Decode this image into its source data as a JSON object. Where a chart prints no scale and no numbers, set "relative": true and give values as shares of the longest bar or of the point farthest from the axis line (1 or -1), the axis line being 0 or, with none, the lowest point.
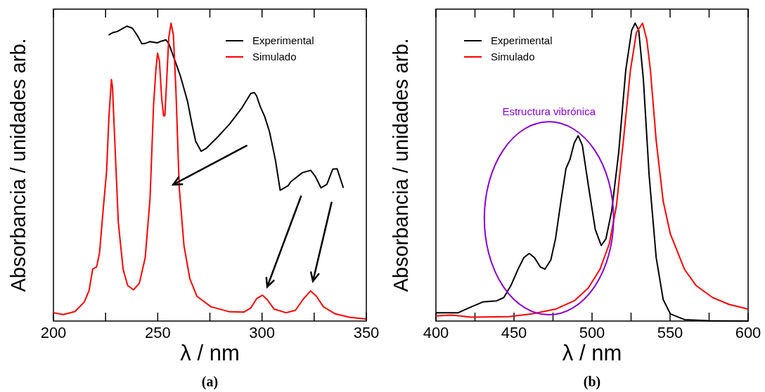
{
  "chart_data": [
    {
      "type": "line",
      "title": "(a)",
      "xlabel": "λ / nm",
      "ylabel": "Absorbancia / unidades arb.",
      "relative": true,
      "legend": "top right",
      "xlim": [
        200,
        350
      ],
      "xticks": [
        200,
        {
          "value": 225,
          "label": null
        },
        250,
        {
          "value": 275,
          "label": null
        },
        300,
        {
          "value": 325,
          "label": null
        },
        350
      ],
      "series": [
        {
          "name": "Experimental",
          "color": "#000000",
          "x": [
            226.4,
            228.3,
            230.6,
            235.3,
            237.9,
            240.1,
            242.4,
            244.0,
            246.3,
            249.7,
            251.9,
            253.9,
            255.3,
            257.5,
            260.9,
            264.3,
            266.5,
            268.2,
            270.8,
            273.3,
            278.9,
            284.5,
            290.1,
            294.6,
            296.3,
            297.4,
            299.1,
            301.3,
            303.6,
            306.4,
            308.7,
            312.6,
            313.7,
            319.3,
            323.3,
            325.5,
            328.3,
            331.1,
            333.9,
            336.0,
            339.0
          ],
          "values": [
            0.96,
            0.968,
            0.972,
            0.99,
            0.983,
            0.96,
            0.931,
            0.932,
            0.938,
            0.934,
            0.94,
            0.944,
            0.932,
            0.889,
            0.822,
            0.737,
            0.658,
            0.603,
            0.57,
            0.58,
            0.619,
            0.662,
            0.713,
            0.764,
            0.767,
            0.756,
            0.721,
            0.686,
            0.635,
            0.541,
            0.439,
            0.455,
            0.467,
            0.498,
            0.506,
            0.486,
            0.447,
            0.459,
            0.51,
            0.511,
            0.447
          ]
        },
        {
          "name": "Simulado",
          "color": "#ff0000",
          "x": [
            200,
            204.7,
            210.3,
            214.8,
            217.1,
            218.8,
            220.7,
            222.1,
            223.8,
            225.5,
            226.6,
            227.8,
            228.3,
            229.4,
            231.1,
            233.4,
            235.6,
            238.4,
            241.2,
            244.0,
            246.3,
            248.0,
            249.1,
            249.9,
            250.8,
            251.9,
            252.8,
            253.4,
            254.2,
            255.3,
            256.4,
            257.5,
            258.7,
            260.3,
            262.6,
            265.4,
            268.8,
            275.5,
            284.5,
            291.2,
            294.6,
            297.4,
            300.2,
            302.5,
            305.8,
            311.5,
            316.0,
            319.9,
            323.3,
            326.1,
            329.4,
            335.1,
            341.8,
            349.7
          ],
          "values": [
            0.028,
            0.022,
            0.032,
            0.064,
            0.103,
            0.174,
            0.182,
            0.229,
            0.37,
            0.504,
            0.685,
            0.811,
            0.787,
            0.606,
            0.331,
            0.174,
            0.119,
            0.105,
            0.127,
            0.213,
            0.41,
            0.724,
            0.842,
            0.899,
            0.873,
            0.748,
            0.689,
            0.689,
            0.795,
            0.952,
            1.0,
            0.96,
            0.779,
            0.449,
            0.252,
            0.142,
            0.083,
            0.048,
            0.031,
            0.03,
            0.044,
            0.075,
            0.087,
            0.072,
            0.04,
            0.028,
            0.036,
            0.075,
            0.101,
            0.083,
            0.048,
            0.024,
            0.013,
            0.007
          ]
        }
      ]
    },
    {
      "type": "line",
      "title": "(b)",
      "xlabel": "λ / nm",
      "ylabel": "Absorbancia / unidades arb.",
      "relative": true,
      "legend": "top left",
      "xlim": [
        400,
        600
      ],
      "xticks": [
        400,
        {
          "value": 425,
          "label": null
        },
        450,
        {
          "value": 475,
          "label": null
        },
        500,
        {
          "value": 525,
          "label": null
        },
        550,
        {
          "value": 575,
          "label": null
        },
        600
      ],
      "annotations": [
        "Estructura vibrónica"
      ],
      "series": [
        {
          "name": "Experimental",
          "color": "#000000",
          "x": [
            400,
            414.3,
            421.0,
            430.0,
            439.0,
            443.5,
            448.0,
            452.6,
            456.3,
            459.8,
            463.1,
            466.8,
            469.8,
            473.6,
            476.6,
            480.3,
            483.3,
            485.9,
            488.6,
            491.1,
            493.8,
            497.6,
            502.1,
            505.9,
            508.9,
            512.6,
            517.1,
            521.6,
            525.4,
            527.6,
            529.9,
            532.9,
            536.6,
            541.1,
            545.6,
            550.2,
            559.2,
            574.2,
            600
          ],
          "values": [
            0.028,
            0.028,
            0.044,
            0.064,
            0.068,
            0.079,
            0.119,
            0.174,
            0.213,
            0.227,
            0.213,
            0.182,
            0.174,
            0.205,
            0.276,
            0.41,
            0.512,
            0.543,
            0.598,
            0.622,
            0.59,
            0.457,
            0.307,
            0.254,
            0.276,
            0.37,
            0.567,
            0.842,
            0.976,
            1.0,
            0.976,
            0.811,
            0.488,
            0.213,
            0.072,
            0.024,
            0.005,
            0.001,
            0
          ]
        },
        {
          "name": "Simulado",
          "color": "#ff0000",
          "x": [
            400,
            409.8,
            413.5,
            422.5,
            446.5,
            461.6,
            476.6,
            488.6,
            497.6,
            505.1,
            511.1,
            515.6,
            520.1,
            524.6,
            528.4,
            532.4,
            535.1,
            537.4,
            541.1,
            545.6,
            550.2,
            559.2,
            566.7,
            577.2,
            587.7,
            600
          ],
          "values": [
            0.017,
            0.02,
            0.018,
            0.013,
            0.015,
            0.024,
            0.04,
            0.068,
            0.111,
            0.174,
            0.26,
            0.386,
            0.606,
            0.842,
            0.968,
            1.0,
            0.944,
            0.842,
            0.606,
            0.402,
            0.292,
            0.174,
            0.119,
            0.079,
            0.056,
            0.04
          ]
        }
      ]
    }
  ]
}
